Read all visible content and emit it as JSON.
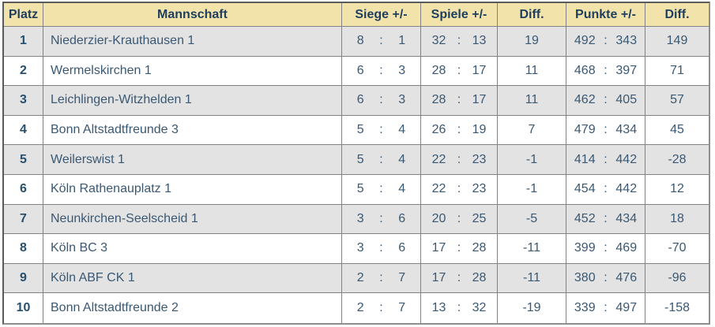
{
  "theme": {
    "header-bg": "#f2e3aa",
    "row-bg": "#ffffff",
    "row-alt-bg": "#e3e3e3",
    "header-text": "#1e3e5f",
    "cell-text": "#3a5873",
    "rank-text": "#28506e",
    "grid-line": "#828282",
    "frame-dark": "#5a5a5a",
    "frame-light": "#8f8f8f"
  },
  "table": {
    "sep": ":",
    "columns": [
      "Platz",
      "Mannschaft",
      "Siege +/-",
      "Spiele +/-",
      "Diff.",
      "Punkte +/-",
      "Diff."
    ],
    "rows": [
      {
        "platz": "1",
        "mannschaft": "Niederzier-Krauthausen 1",
        "siege": [
          "8",
          "1"
        ],
        "spiele": [
          "32",
          "13"
        ],
        "spiele_diff": "19",
        "punkte": [
          "492",
          "343"
        ],
        "punkte_diff": "149"
      },
      {
        "platz": "2",
        "mannschaft": "Wermelskirchen 1",
        "siege": [
          "6",
          "3"
        ],
        "spiele": [
          "28",
          "17"
        ],
        "spiele_diff": "11",
        "punkte": [
          "468",
          "397"
        ],
        "punkte_diff": "71"
      },
      {
        "platz": "3",
        "mannschaft": "Leichlingen-Witzhelden 1",
        "siege": [
          "6",
          "3"
        ],
        "spiele": [
          "28",
          "17"
        ],
        "spiele_diff": "11",
        "punkte": [
          "462",
          "405"
        ],
        "punkte_diff": "57"
      },
      {
        "platz": "4",
        "mannschaft": "Bonn Altstadtfreunde 3",
        "siege": [
          "5",
          "4"
        ],
        "spiele": [
          "26",
          "19"
        ],
        "spiele_diff": "7",
        "punkte": [
          "479",
          "434"
        ],
        "punkte_diff": "45"
      },
      {
        "platz": "5",
        "mannschaft": "Weilerswist 1",
        "siege": [
          "5",
          "4"
        ],
        "spiele": [
          "22",
          "23"
        ],
        "spiele_diff": "-1",
        "punkte": [
          "414",
          "442"
        ],
        "punkte_diff": "-28"
      },
      {
        "platz": "6",
        "mannschaft": "Köln Rathenauplatz 1",
        "siege": [
          "5",
          "4"
        ],
        "spiele": [
          "22",
          "23"
        ],
        "spiele_diff": "-1",
        "punkte": [
          "454",
          "442"
        ],
        "punkte_diff": "12"
      },
      {
        "platz": "7",
        "mannschaft": "Neunkirchen-Seelscheid 1",
        "siege": [
          "3",
          "6"
        ],
        "spiele": [
          "20",
          "25"
        ],
        "spiele_diff": "-5",
        "punkte": [
          "452",
          "434"
        ],
        "punkte_diff": "18"
      },
      {
        "platz": "8",
        "mannschaft": "Köln BC 3",
        "siege": [
          "3",
          "6"
        ],
        "spiele": [
          "17",
          "28"
        ],
        "spiele_diff": "-11",
        "punkte": [
          "399",
          "469"
        ],
        "punkte_diff": "-70"
      },
      {
        "platz": "9",
        "mannschaft": "Köln ABF CK 1",
        "siege": [
          "2",
          "7"
        ],
        "spiele": [
          "17",
          "28"
        ],
        "spiele_diff": "-11",
        "punkte": [
          "380",
          "476"
        ],
        "punkte_diff": "-96"
      },
      {
        "platz": "10",
        "mannschaft": "Bonn Altstadtfreunde 2",
        "siege": [
          "2",
          "7"
        ],
        "spiele": [
          "13",
          "32"
        ],
        "spiele_diff": "-19",
        "punkte": [
          "339",
          "497"
        ],
        "punkte_diff": "-158"
      }
    ]
  }
}
